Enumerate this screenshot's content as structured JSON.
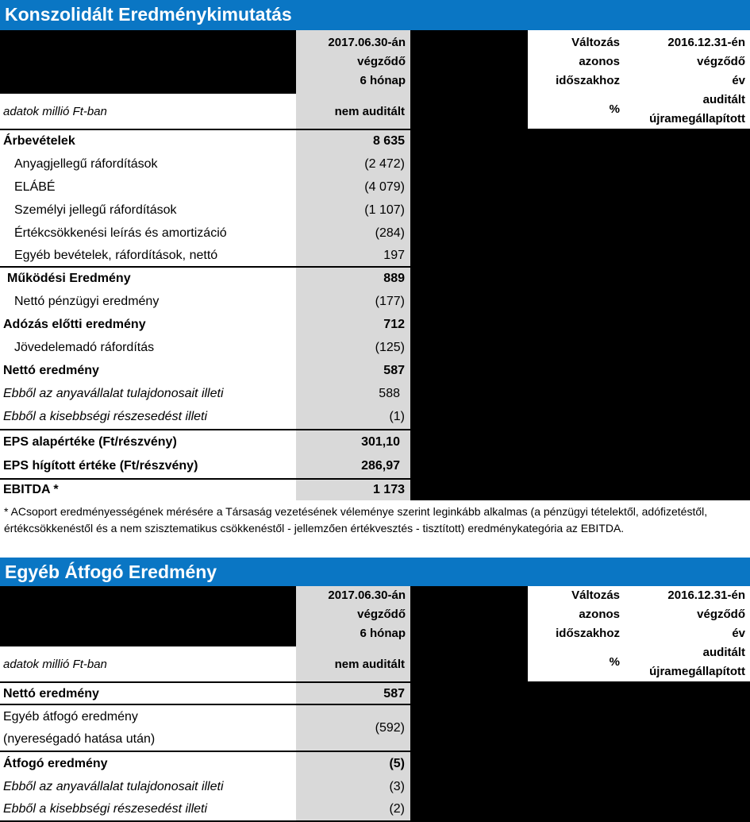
{
  "section1": {
    "title": "Konszolidált Eredménykimutatás",
    "header": {
      "col1": [
        "2017.06.30-án",
        "végződő",
        "6 hónap"
      ],
      "col1_sub": "nem auditált",
      "units": "adatok millió Ft-ban",
      "col2": [
        "Változás",
        "azonos",
        "időszakhoz"
      ],
      "col2_sub": "%",
      "col3": [
        "2016.12.31-én",
        "végződő",
        "év"
      ],
      "col3_sub": [
        "auditált",
        "újramegállapított"
      ]
    },
    "rows": [
      {
        "label": "Árbevételek",
        "value": "8 635"
      },
      {
        "label": "Anyagjellegű ráfordítások",
        "value": "(2 472)"
      },
      {
        "label": "ELÁBÉ",
        "value": "(4 079)"
      },
      {
        "label": "Személyi jellegű ráfordítások",
        "value": "(1 107)"
      },
      {
        "label": "Értékcsökkenési leírás és amortizáció",
        "value": "(284)"
      },
      {
        "label": "Egyéb bevételek, ráfordítások, nettó",
        "value": "197"
      },
      {
        "label": "Működési Eredmény",
        "value": "889"
      },
      {
        "label": "Nettó pénzügyi eredmény",
        "value": "(177)"
      },
      {
        "label": "Adózás előtti eredmény",
        "value": "712"
      },
      {
        "label": "Jövedelemadó ráfordítás",
        "value": "(125)"
      },
      {
        "label": "Nettó eredmény",
        "value": "587"
      },
      {
        "label": "Ebből az anyavállalat tulajdonosait illeti",
        "value": "588"
      },
      {
        "label": "Ebből a kisebbségi részesedést illeti",
        "value": "(1)"
      },
      {
        "label": "EPS alapértéke (Ft/részvény)",
        "value": "301,10"
      },
      {
        "label": "EPS hígított értéke (Ft/részvény)",
        "value": "286,97"
      },
      {
        "label": "EBITDA *",
        "value": "1 173"
      }
    ],
    "footnote": "* ACsoport eredményességének mérésére a Társaság vezetésének véleménye szerint leginkább alkalmas (a pénzügyi tételektől, adófizetéstől, értékcsökkenéstől és a nem szisztematikus csökkenéstől - jellemzően értékvesztés - tisztított) eredménykategória az EBITDA."
  },
  "section2": {
    "title": "Egyéb Átfogó Eredmény",
    "header": {
      "col1": [
        "2017.06.30-án",
        "végződő",
        "6 hónap"
      ],
      "col1_sub": "nem auditált",
      "units": "adatok millió Ft-ban",
      "col2": [
        "Változás",
        "azonos",
        "időszakhoz"
      ],
      "col2_sub": "%",
      "col3": [
        "2016.12.31-én",
        "végződő",
        "év"
      ],
      "col3_sub": [
        "auditált",
        "újramegállapított"
      ]
    },
    "rows": [
      {
        "label": "Nettó eredmény",
        "value": "587"
      },
      {
        "label": "Egyéb átfogó eredmény",
        "label2": "(nyereségadó hatása után)",
        "value": "(592)"
      },
      {
        "label": "Átfogó eredmény",
        "value": "(5)"
      },
      {
        "label": "Ebből az anyavállalat tulajdonosait illeti",
        "value": "(3)"
      },
      {
        "label": "Ebből a kisebbségi részesedést illeti",
        "value": "(2)"
      }
    ]
  }
}
